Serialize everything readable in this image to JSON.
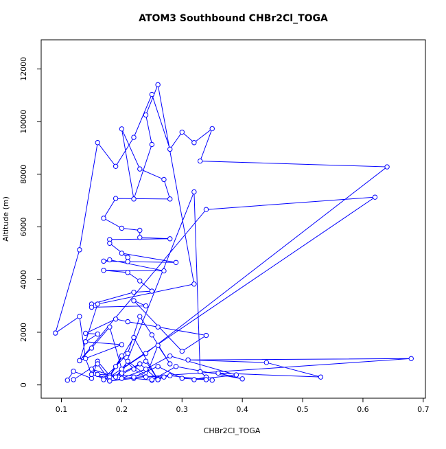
{
  "chart_data": {
    "type": "line",
    "title": "ATOM3 Southbound CHBr2Cl_TOGA",
    "x_label": "CHBr2Cl_TOGA",
    "y_label": "Altitude (m)",
    "color": "#0000ff",
    "markers": true,
    "xlim": [
      0.0664,
      0.7036
    ],
    "ylim": [
      -504,
      13104
    ],
    "xticks": [
      0.1,
      0.2,
      0.3,
      0.4,
      0.5,
      0.6,
      0.7
    ],
    "yticks": [
      0,
      2000,
      4000,
      6000,
      8000,
      10000,
      12000
    ],
    "x": [
      0.11,
      0.12,
      0.15,
      0.16,
      0.18,
      0.2,
      0.22,
      0.24,
      0.26,
      0.28,
      0.25,
      0.23,
      0.21,
      0.19,
      0.17,
      0.15,
      0.14,
      0.13,
      0.09,
      0.13,
      0.16,
      0.19,
      0.22,
      0.25,
      0.28,
      0.3,
      0.32,
      0.35,
      0.33,
      0.64,
      0.24,
      0.2,
      0.18,
      0.15,
      0.13,
      0.16,
      0.32,
      0.26,
      0.24,
      0.25,
      0.22,
      0.2,
      0.23,
      0.27,
      0.28,
      0.19,
      0.17,
      0.2,
      0.23,
      0.23,
      0.28,
      0.18,
      0.18,
      0.21,
      0.2,
      0.29,
      0.21,
      0.17,
      0.18,
      0.27,
      0.17,
      0.21,
      0.23,
      0.25,
      0.22,
      0.15,
      0.15,
      0.24,
      0.22,
      0.3,
      0.34,
      0.26,
      0.21,
      0.19,
      0.14,
      0.16,
      0.14,
      0.2,
      0.13,
      0.34,
      0.62,
      0.18,
      0.22,
      0.26,
      0.24,
      0.2,
      0.32,
      0.33,
      0.34,
      0.32,
      0.39,
      0.28,
      0.24,
      0.2,
      0.68,
      0.31,
      0.44,
      0.53,
      0.36,
      0.4,
      0.29,
      0.25,
      0.22,
      0.18,
      0.16,
      0.27,
      0.26,
      0.23,
      0.2,
      0.17,
      0.15,
      0.19,
      0.21,
      0.25,
      0.28,
      0.35,
      0.34,
      0.3,
      0.26,
      0.22,
      0.18,
      0.16,
      0.12
    ],
    "y": [
      180,
      520,
      250,
      900,
      350,
      1100,
      600,
      300,
      1500,
      800,
      1900,
      2600,
      1200,
      700,
      250,
      400,
      1000,
      2600,
      1970,
      5130,
      9200,
      8300,
      9400,
      11030,
      8950,
      9600,
      9200,
      9730,
      8500,
      8280,
      1200,
      600,
      2200,
      1400,
      920,
      3070,
      3830,
      11400,
      10250,
      9130,
      7060,
      9720,
      8200,
      7800,
      7060,
      7080,
      6330,
      5950,
      5870,
      5600,
      5550,
      5520,
      5380,
      4840,
      5000,
      4650,
      4680,
      4700,
      4750,
      4330,
      4350,
      4270,
      3950,
      3560,
      3520,
      3070,
      2950,
      3000,
      3200,
      1280,
      1880,
      2200,
      2400,
      2500,
      1960,
      1930,
      1640,
      1530,
      920,
      6660,
      7130,
      300,
      1800,
      200,
      900,
      400,
      7330,
      500,
      300,
      200,
      380,
      1100,
      600,
      250,
      1000,
      950,
      850,
      300,
      450,
      230,
      700,
      180,
      250,
      150,
      400,
      300,
      200,
      800,
      450,
      200,
      600,
      300,
      900,
      200,
      350,
      180,
      200,
      250,
      700,
      300,
      150,
      800,
      200
    ]
  }
}
